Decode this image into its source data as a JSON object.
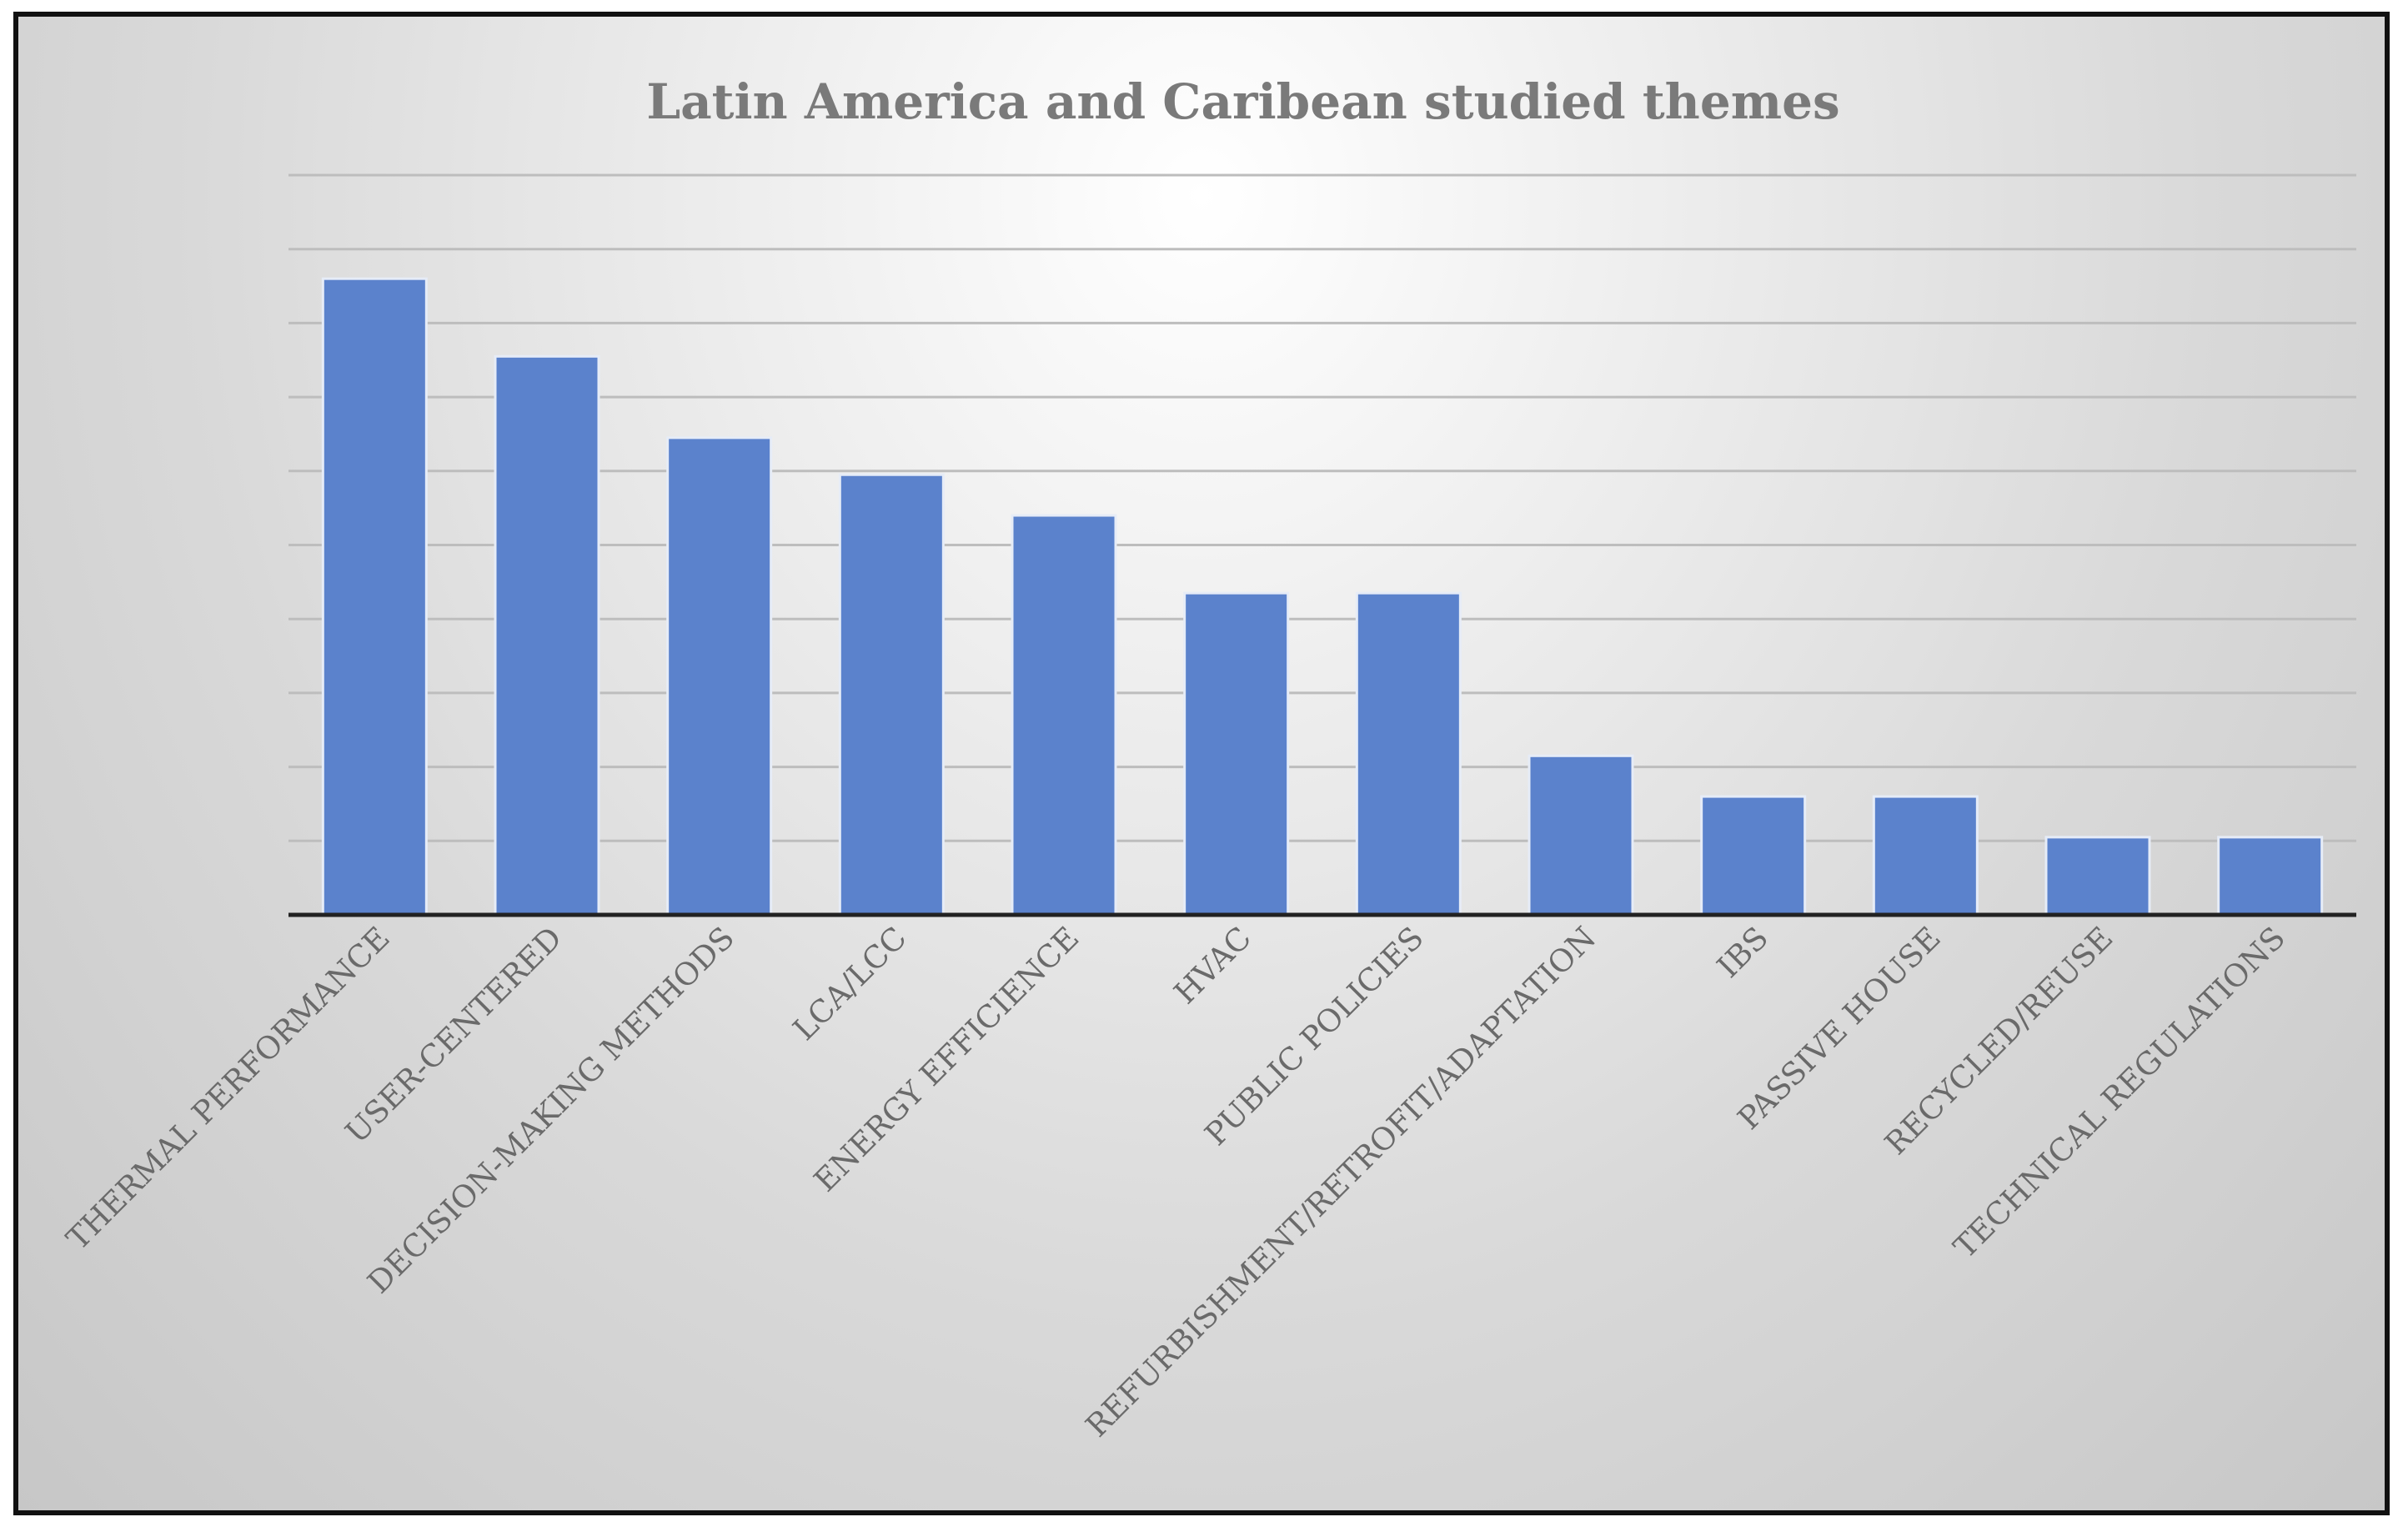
{
  "chart_data": {
    "type": "bar",
    "title": "Latin America and Caribean studied themes",
    "xlabel": "",
    "ylabel": "",
    "categories": [
      "THERMAL PERFORMANCE",
      "USER-CENTERED",
      "DECISION-MAKING METHODS",
      "LCA/LCC",
      "ENERGY EFFICIENCE",
      "HVAC",
      "PUBLIC POLICIES",
      "REFURBISHMENT/RETROFIT/ADAPTATION",
      "IBS",
      "PASSIVE HOUSE",
      "RECYCLED/REUSE",
      "TECHNICAL REGULATIONS"
    ],
    "values": [
      17.2,
      15.1,
      12.9,
      11.9,
      10.8,
      8.7,
      8.7,
      4.3,
      3.2,
      3.2,
      2.1,
      2.1
    ],
    "ylim": [
      0,
      20
    ],
    "grid": true,
    "legend": "none",
    "bar_color": "#5b82cc",
    "gridline_color": "#bdbdbd",
    "axis_color": "#222222"
  }
}
